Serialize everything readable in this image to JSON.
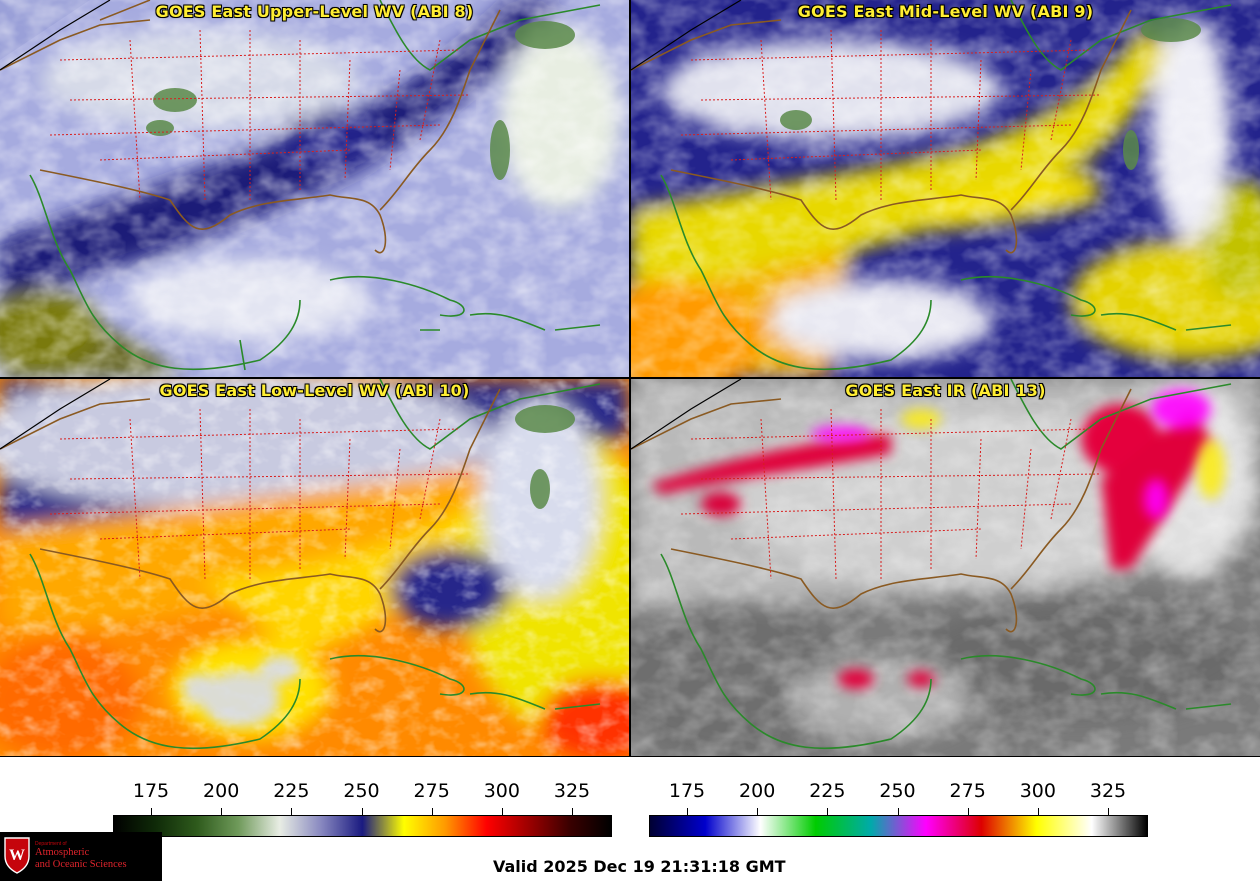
{
  "panels": [
    {
      "title": "GOES East Upper-Level WV (ABI 8)"
    },
    {
      "title": "GOES East Mid-Level WV (ABI 9)"
    },
    {
      "title": "GOES East Low-Level WV (ABI 10)"
    },
    {
      "title": "GOES East IR (ABI 13)"
    }
  ],
  "colorbars": {
    "wv": {
      "ticks": [
        "175",
        "200",
        "225",
        "250",
        "275",
        "300",
        "325"
      ],
      "colors": [
        "#000000",
        "#0f2a08",
        "#2e5a1c",
        "#6f9a5a",
        "#e8ede4",
        "#8888c0",
        "#1a1a80",
        "#ffff00",
        "#ff9900",
        "#ff0000",
        "#9e0000",
        "#3a0000",
        "#000000"
      ]
    },
    "ir": {
      "ticks": [
        "175",
        "200",
        "225",
        "250",
        "275",
        "300",
        "325"
      ],
      "colors": [
        "#000033",
        "#0000cc",
        "#ffffff",
        "#00cc00",
        "#00aaaa",
        "#ff00ff",
        "#dd0000",
        "#ffff00",
        "#ffffff",
        "#000000"
      ]
    }
  },
  "logo": {
    "dept": "Department of",
    "line1": "Atmospheric",
    "line2": "and Oceanic Sciences",
    "shield_letter": "W"
  },
  "valid_time": "Valid 2025 Dec 19 21:31:18 GMT"
}
